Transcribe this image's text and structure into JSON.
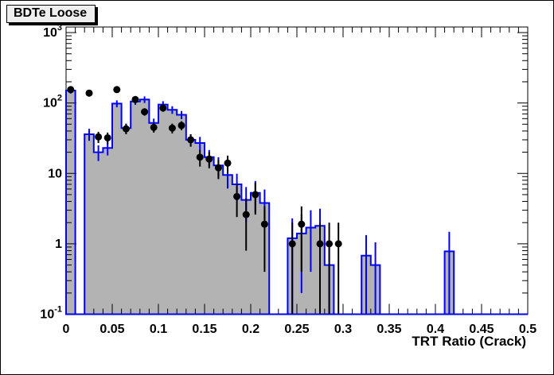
{
  "title": "BDTe Loose",
  "xlabel": "TRT Ratio (Crack)",
  "colors": {
    "background": "#ffffff",
    "frame": "#000000",
    "hist_line": "#0000ff",
    "hist_fill": "#b3b3b3",
    "points": "#000000"
  },
  "chart_data": {
    "type": "bar",
    "subtype": "root-histogram-log-y-with-data-points",
    "title": "BDTe Loose",
    "xlabel": "TRT Ratio (Crack)",
    "ylabel": "",
    "x_min": 0,
    "x_max": 0.5,
    "bin_width": 0.01,
    "y_scale": "log",
    "y_min": 0.1,
    "y_max": 1200,
    "grid": false,
    "legend": "none",
    "x_tick_values": [
      0,
      0.05,
      0.1,
      0.15,
      0.2,
      0.25,
      0.3,
      0.35,
      0.4,
      0.45,
      0.5
    ],
    "x_tick_labels": [
      "0",
      "0.05",
      "0.1",
      "0.15",
      "0.2",
      "0.25",
      "0.3",
      "0.35",
      "0.4",
      "0.45",
      "0.5"
    ],
    "y_ticks": [
      {
        "v": 1000,
        "base": "10",
        "exp": "3"
      },
      {
        "v": 100,
        "base": "10",
        "exp": "2"
      },
      {
        "v": 10,
        "base": "10",
        "exp": ""
      },
      {
        "v": 1,
        "base": "1",
        "exp": ""
      },
      {
        "v": 0.1,
        "base": "10",
        "exp": "-1"
      }
    ],
    "histogram": {
      "style": "filled steps with error ticks",
      "values": [
        150,
        0,
        36,
        20,
        23,
        98,
        44,
        105,
        112,
        52,
        95,
        80,
        68,
        30,
        27,
        17,
        13,
        9.5,
        7,
        4.2,
        5.3,
        3.8,
        0,
        0,
        1.2,
        1.4,
        1.7,
        1.8,
        0.5,
        0,
        0,
        0,
        0.68,
        0.5,
        0,
        0,
        0,
        0,
        0,
        0,
        0,
        0.78,
        0,
        0,
        0,
        0,
        0,
        0,
        0,
        0
      ],
      "errors": [
        14,
        0,
        7,
        5,
        5,
        11,
        7,
        11,
        12,
        8,
        11,
        10,
        9,
        6,
        6,
        4.5,
        4,
        3.4,
        2.9,
        2.2,
        2.5,
        2.1,
        0,
        0,
        1.1,
        1.2,
        1.3,
        1.35,
        0.55,
        0,
        0,
        0,
        0.65,
        0.55,
        0,
        0,
        0,
        0,
        0,
        0,
        0,
        0.7,
        0,
        0,
        0,
        0,
        0,
        0,
        0,
        0
      ]
    },
    "points": {
      "style": "filled black circles with vertical error bars",
      "x": [
        0.005,
        0.025,
        0.035,
        0.045,
        0.055,
        0.065,
        0.075,
        0.085,
        0.095,
        0.105,
        0.115,
        0.125,
        0.135,
        0.145,
        0.155,
        0.165,
        0.175,
        0.185,
        0.195,
        0.205,
        0.215,
        0.245,
        0.255,
        0.275,
        0.285,
        0.295
      ],
      "y": [
        155,
        138,
        33,
        32,
        155,
        43,
        112,
        75,
        45,
        85,
        44,
        48,
        30,
        17,
        16,
        12,
        14,
        4.7,
        2.6,
        5.0,
        1.9,
        1.0,
        1.9,
        1.0,
        1.0,
        1.0
      ],
      "yerr": [
        13,
        12,
        6,
        6,
        13,
        7,
        11,
        9,
        7,
        10,
        7,
        7,
        6,
        4.5,
        4.2,
        3.7,
        3.9,
        2.3,
        1.8,
        2.4,
        1.5,
        1.0,
        1.5,
        1.0,
        1.0,
        1.0
      ]
    }
  }
}
